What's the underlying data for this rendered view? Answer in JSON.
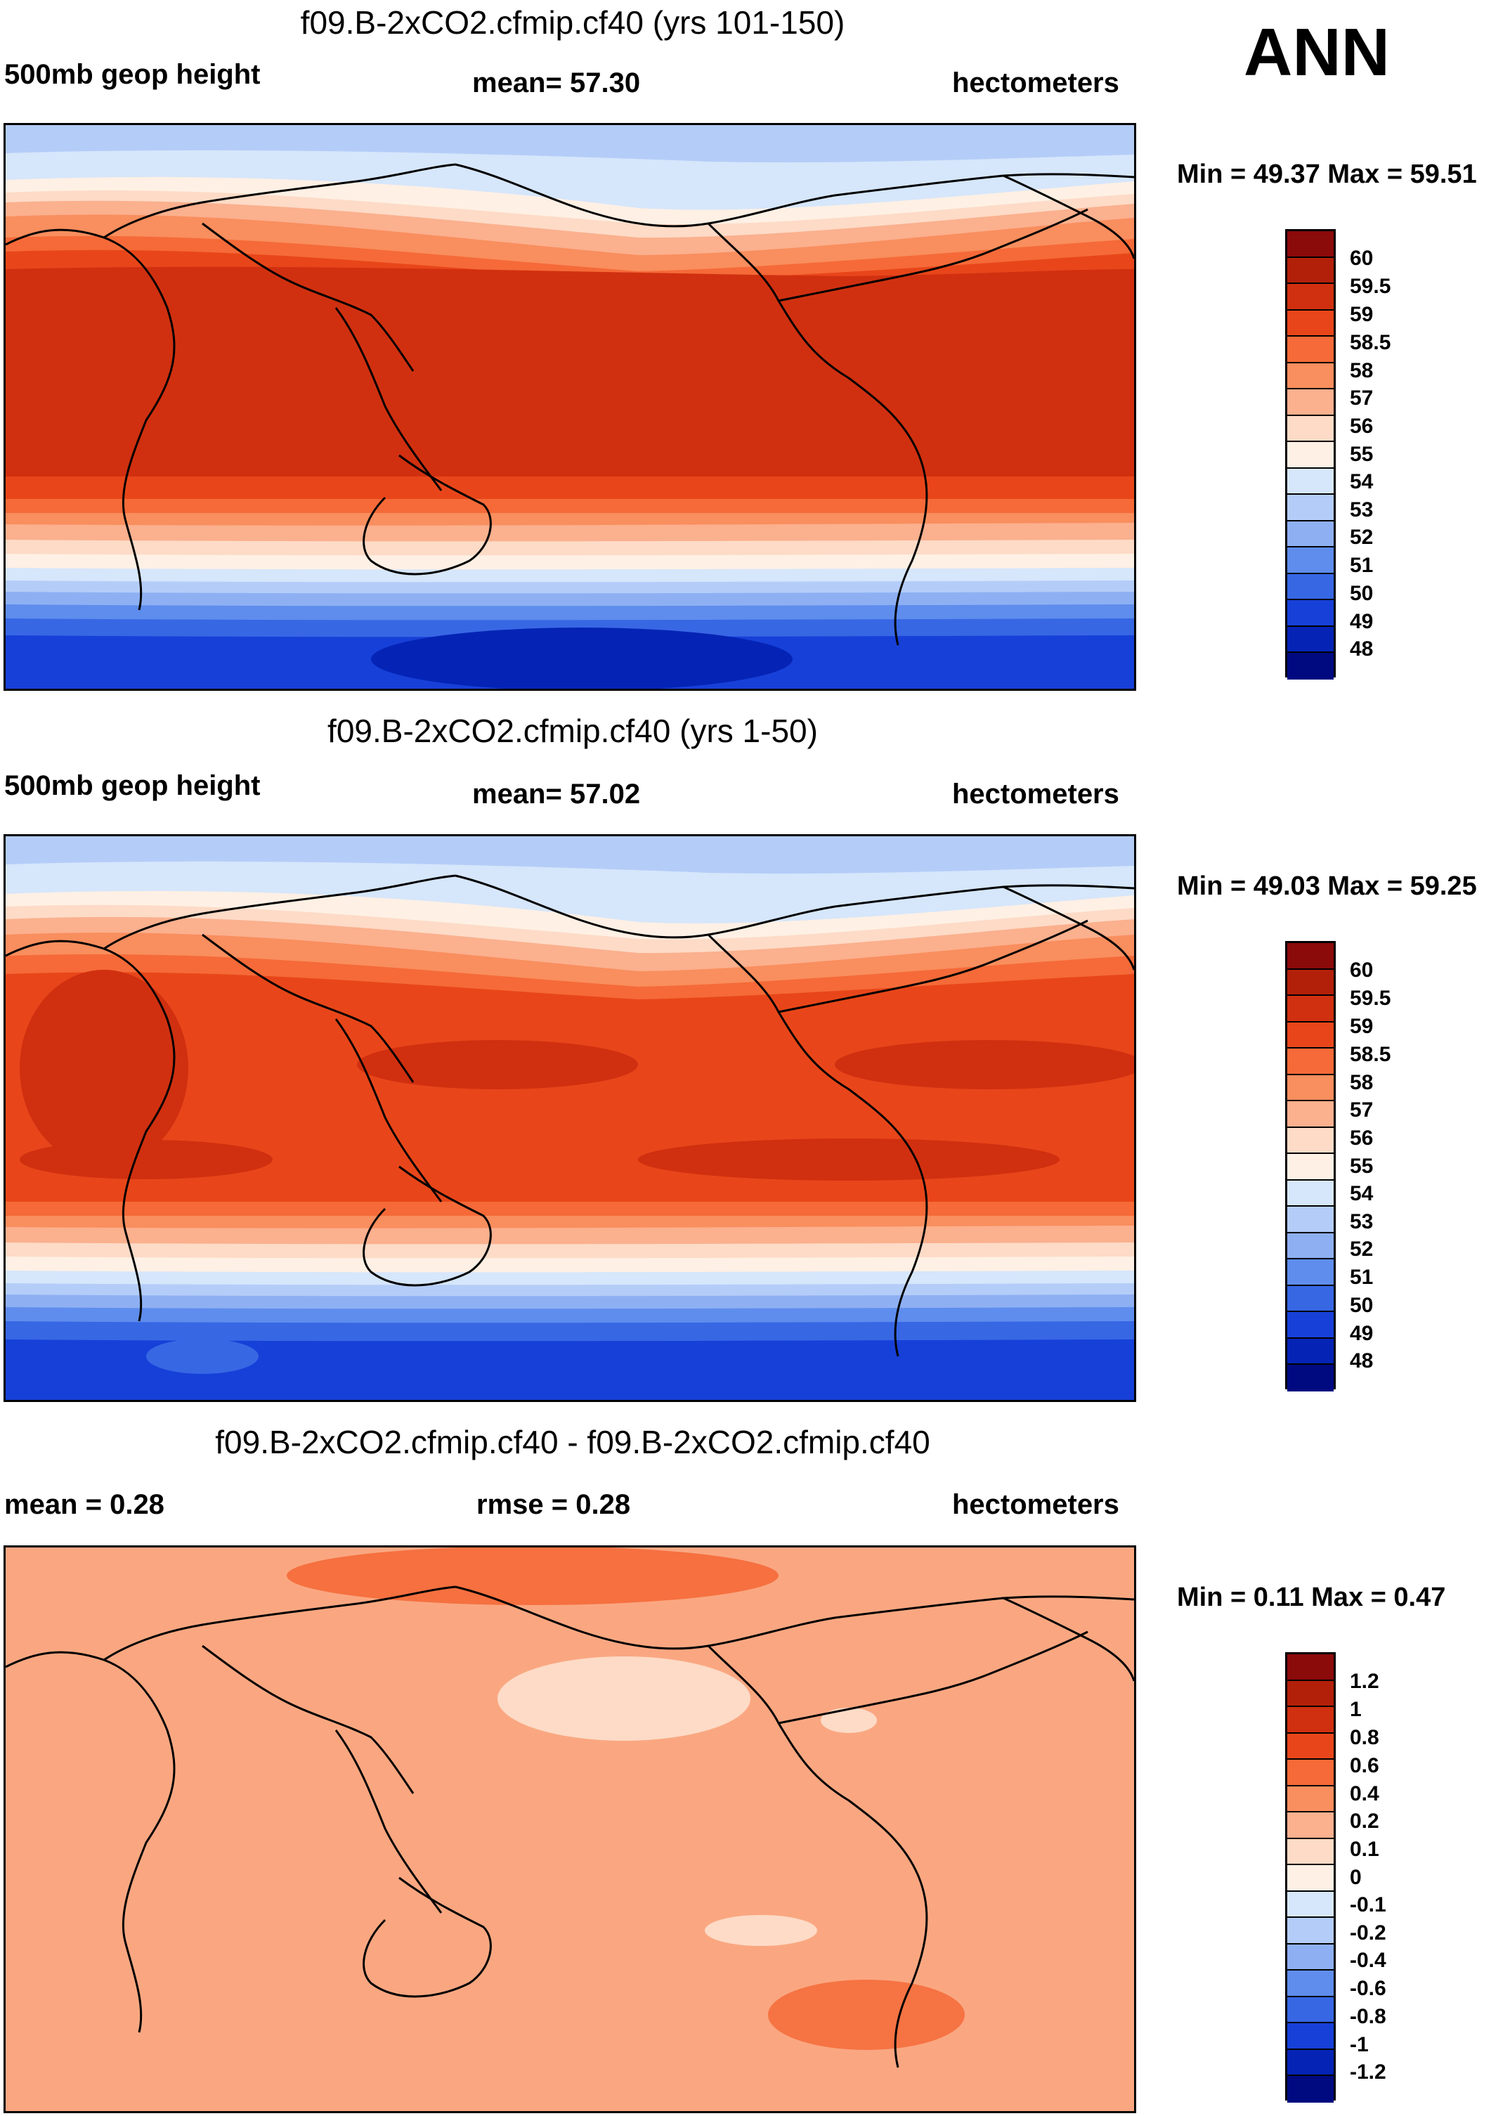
{
  "season": "ANN",
  "coast_color": "#000000",
  "panels": [
    {
      "title": "f09.B-2xCO2.cfmip.cf40 (yrs 101-150)",
      "left_label": "500mb geop height",
      "center_label": "mean=  57.30",
      "right_label": "hectometers",
      "minmax": "Min =  49.37 Max =  59.51",
      "colorbar_labels": [
        "60",
        "59.5",
        "59",
        "58.5",
        "58",
        "57",
        "56",
        "55",
        "54",
        "53",
        "52",
        "51",
        "50",
        "49",
        "48"
      ],
      "colorbar_colors": [
        "#8b0a0a",
        "#b3200a",
        "#d03010",
        "#e8461a",
        "#f56a38",
        "#f98e5e",
        "#fbb08e",
        "#fddbc7",
        "#fef0e4",
        "#d6e6fb",
        "#b4cdf8",
        "#8eb0f3",
        "#5f8ded",
        "#3867e4",
        "#1740d8",
        "#0524b5",
        "#000a80"
      ]
    },
    {
      "title": "f09.B-2xCO2.cfmip.cf40 (yrs 1-50)",
      "left_label": "500mb geop height",
      "center_label": "mean=  57.02",
      "right_label": "hectometers",
      "minmax": "Min =  49.03 Max =  59.25",
      "colorbar_labels": [
        "60",
        "59.5",
        "59",
        "58.5",
        "58",
        "57",
        "56",
        "55",
        "54",
        "53",
        "52",
        "51",
        "50",
        "49",
        "48"
      ],
      "colorbar_colors": [
        "#8b0a0a",
        "#b3200a",
        "#d03010",
        "#e8461a",
        "#f56a38",
        "#f98e5e",
        "#fbb08e",
        "#fddbc7",
        "#fef0e4",
        "#d6e6fb",
        "#b4cdf8",
        "#8eb0f3",
        "#5f8ded",
        "#3867e4",
        "#1740d8",
        "#0524b5",
        "#000a80"
      ]
    },
    {
      "title": "f09.B-2xCO2.cfmip.cf40 - f09.B-2xCO2.cfmip.cf40",
      "left_label": "mean =   0.28",
      "center_label": "rmse =   0.28",
      "right_label": "hectometers",
      "minmax": "Min =   0.11 Max =   0.47",
      "colorbar_labels": [
        "1.2",
        "1",
        "0.8",
        "0.6",
        "0.4",
        "0.2",
        "0.1",
        "0",
        "-0.1",
        "-0.2",
        "-0.4",
        "-0.6",
        "-0.8",
        "-1",
        "-1.2"
      ],
      "colorbar_colors": [
        "#8b0a0a",
        "#b3200a",
        "#d03010",
        "#e8461a",
        "#f56a38",
        "#f98e5e",
        "#fbb08e",
        "#fddbc7",
        "#fef0e4",
        "#d6e6fb",
        "#b4cdf8",
        "#8eb0f3",
        "#5f8ded",
        "#3867e4",
        "#1740d8",
        "#0524b5",
        "#000a80"
      ]
    }
  ]
}
